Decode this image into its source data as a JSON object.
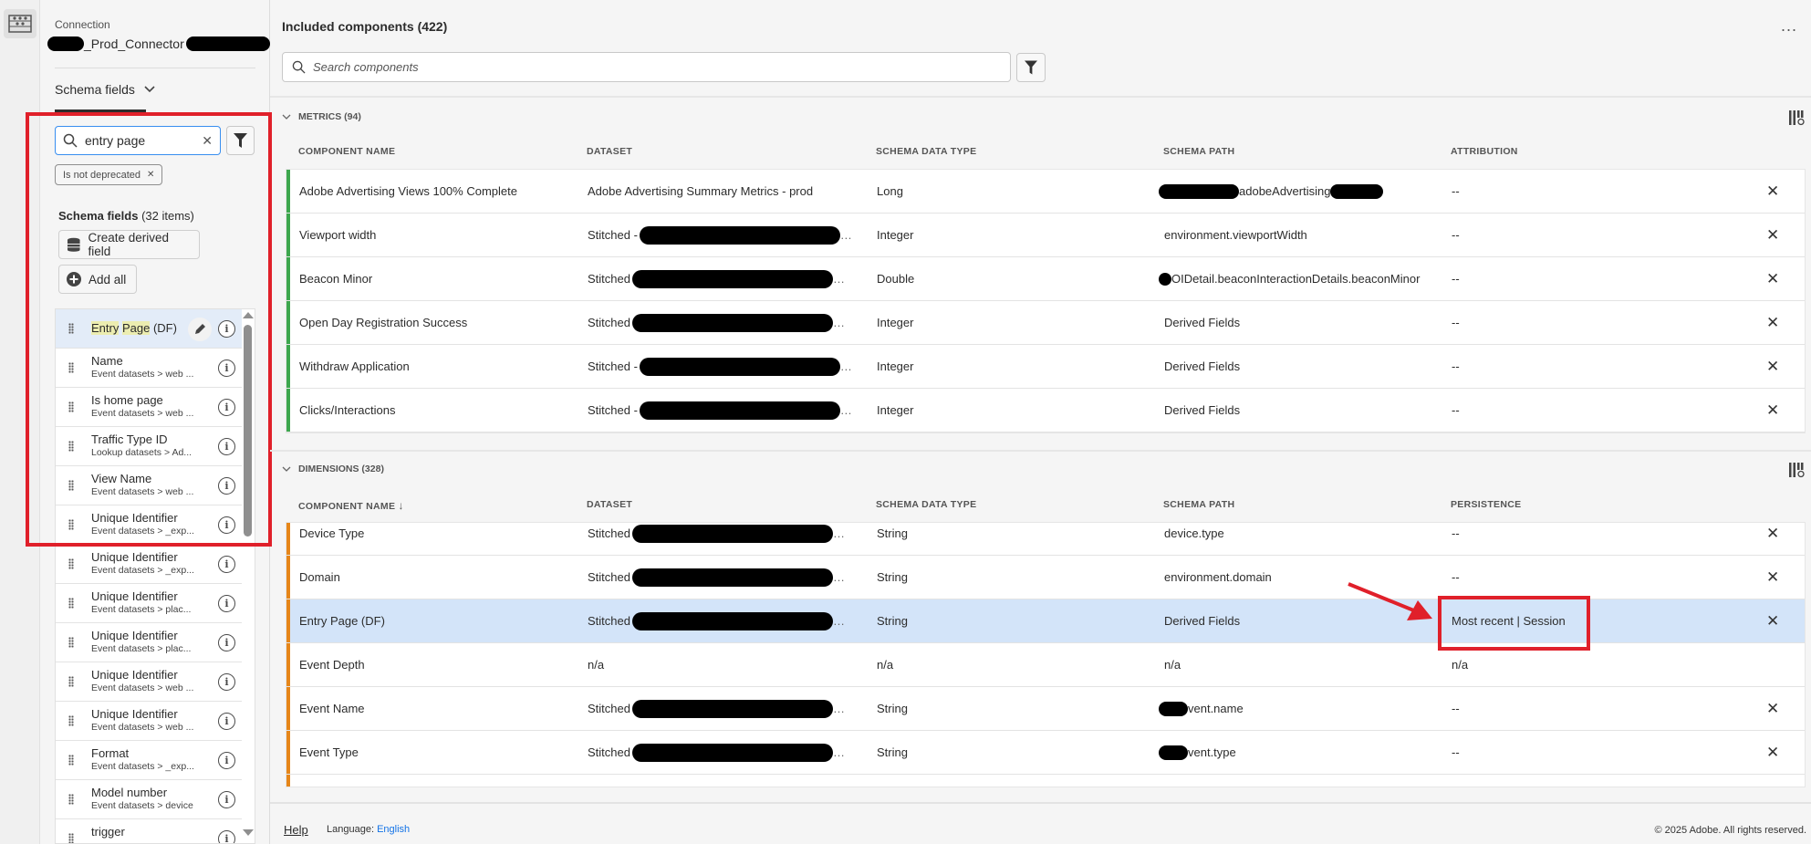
{
  "left_panel": {
    "connection_label": "Connection",
    "connection_name": "_Prod_Connector",
    "tab_label": "Schema fields",
    "search_value": "entry page",
    "filter_chip": "Is not deprecated",
    "list_heading": "Schema fields",
    "list_count": "(32 items)",
    "create_derived_label": "Create derived field",
    "add_all_label": "Add all",
    "items": [
      {
        "title_parts": [
          "Entry",
          " ",
          "Page",
          " (DF)"
        ],
        "selected": true
      },
      {
        "title": "Name",
        "sub": "Event datasets > web ..."
      },
      {
        "title": "Is home page",
        "sub": "Event datasets > web ..."
      },
      {
        "title": "Traffic Type ID",
        "sub": "Lookup datasets > Ad..."
      },
      {
        "title": "View Name",
        "sub": "Event datasets > web ..."
      },
      {
        "title": "Unique Identifier",
        "sub": "Event datasets > _exp..."
      },
      {
        "title": "Unique Identifier",
        "sub": "Event datasets > _exp..."
      },
      {
        "title": "Unique Identifier",
        "sub": "Event datasets > plac..."
      },
      {
        "title": "Unique Identifier",
        "sub": "Event datasets > plac..."
      },
      {
        "title": "Unique Identifier",
        "sub": "Event datasets > web ..."
      },
      {
        "title": "Unique Identifier",
        "sub": "Event datasets > web ..."
      },
      {
        "title": "Format",
        "sub": "Event datasets > _exp..."
      },
      {
        "title": "Model number",
        "sub": "Event datasets > device"
      },
      {
        "title": "trigger",
        "sub": ""
      }
    ]
  },
  "main": {
    "title": "Included components (422)",
    "more_label": "...",
    "search_placeholder": "Search components",
    "metrics": {
      "heading": "METRICS (94)",
      "columns": [
        "COMPONENT NAME",
        "DATASET",
        "SCHEMA DATA TYPE",
        "SCHEMA PATH",
        "ATTRIBUTION"
      ],
      "accent": "#3da74e",
      "rows": [
        {
          "name": "Adobe Advertising Views 100% Complete",
          "dataset": "Adobe Advertising Summary Metrics - prod",
          "type": "Long",
          "path": "adobeAdvertising",
          "path_redacted": "both",
          "value": "--"
        },
        {
          "name": "Viewport width",
          "dataset": "Stitched -",
          "dataset_redacted": true,
          "type": "Integer",
          "path": "environment.viewportWidth",
          "value": "--"
        },
        {
          "name": "Beacon Minor",
          "dataset": "Stitched",
          "dataset_redacted": true,
          "type": "Double",
          "path": "OIDetail.beaconInteractionDetails.beaconMinor",
          "path_redacted": "dot",
          "value": "--"
        },
        {
          "name": "Open Day Registration Success",
          "dataset": "Stitched",
          "dataset_redacted": true,
          "type": "Integer",
          "path": "Derived Fields",
          "value": "--"
        },
        {
          "name": "Withdraw Application",
          "dataset": "Stitched -",
          "dataset_redacted": true,
          "type": "Integer",
          "path": "Derived Fields",
          "value": "--"
        },
        {
          "name": "Clicks/Interactions",
          "dataset": "Stitched -",
          "dataset_redacted": true,
          "type": "Integer",
          "path": "Derived Fields",
          "value": "--"
        }
      ]
    },
    "dimensions": {
      "heading": "DIMENSIONS (328)",
      "columns": [
        "COMPONENT NAME",
        "DATASET",
        "SCHEMA DATA TYPE",
        "SCHEMA PATH",
        "PERSISTENCE"
      ],
      "sort_icon": "arrow-down-icon",
      "accent": "#e68619",
      "rows": [
        {
          "name": "Device Type",
          "dataset": "Stitched",
          "dataset_redacted": true,
          "type": "String",
          "path": "device.type",
          "value": "--"
        },
        {
          "name": "Domain",
          "dataset": "Stitched",
          "dataset_redacted": true,
          "type": "String",
          "path": "environment.domain",
          "value": "--"
        },
        {
          "name": "Entry Page (DF)",
          "dataset": "Stitched",
          "dataset_redacted": true,
          "type": "String",
          "path": "Derived Fields",
          "value": "Most recent | Session",
          "selected": true
        },
        {
          "name": "Event Depth",
          "dataset": "n/a",
          "type": "n/a",
          "path": "n/a",
          "value": "n/a",
          "no_remove": true
        },
        {
          "name": "Event Name",
          "dataset": "Stitched",
          "dataset_redacted": true,
          "type": "String",
          "path": "vent.name",
          "path_redacted": "pre",
          "value": "--"
        },
        {
          "name": "Event Type",
          "dataset": "Stitched",
          "dataset_redacted": true,
          "type": "String",
          "path": "vent.type",
          "path_redacted": "pre",
          "value": "--"
        }
      ]
    }
  },
  "footer": {
    "help": "Help",
    "language_label": "Language:",
    "language_value": "English",
    "copyright": "© 2025 Adobe. All rights reserved."
  },
  "colors": {
    "annotation": "#e0202a",
    "selected_row": "#d3e4f9",
    "link": "#1473e6"
  }
}
